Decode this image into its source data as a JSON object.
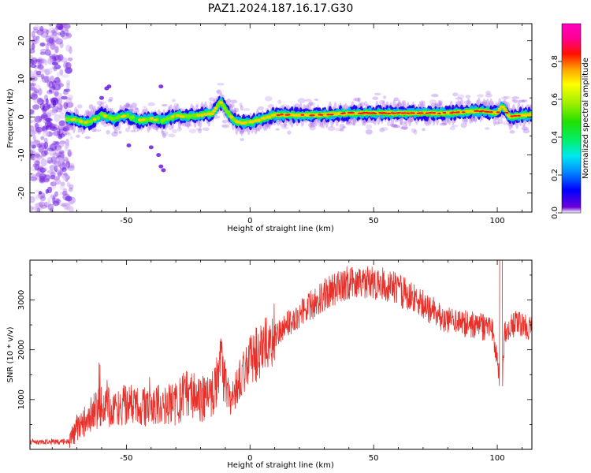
{
  "title": "PAZ1.2024.187.16.17.G30",
  "colors": {
    "snr_line": "#e8302a",
    "axis": "#000000"
  },
  "chart_data": [
    {
      "type": "heatmap",
      "panel": "top",
      "xlabel": "Height of straight line (km)",
      "ylabel": "Frequency (Hz)",
      "xlim": [
        -89,
        114
      ],
      "ylim": [
        -25,
        24.5
      ],
      "xticks": [
        -50,
        0,
        50,
        100
      ],
      "yticks": [
        -20,
        -10,
        0,
        10,
        20
      ],
      "grid": false,
      "colorbar": {
        "label": "Normalized spectral amplitude",
        "range": [
          0,
          1
        ],
        "ticks": [
          0.0,
          0.2,
          0.4,
          0.6,
          0.8
        ],
        "colormap": "gist_ncar-like (purple-blue-cyan-green-yellow-red-magenta)"
      },
      "ridge": {
        "description": "Main spectral ridge near 0 Hz",
        "x": [
          -73,
          -65,
          -60,
          -55,
          -50,
          -45,
          -40,
          -35,
          -30,
          -25,
          -20,
          -15,
          -12,
          -10,
          -7,
          -5,
          0,
          5,
          10,
          20,
          30,
          40,
          50,
          60,
          70,
          80,
          90,
          95,
          100,
          102,
          105,
          110,
          114
        ],
        "y": [
          -0.5,
          -1.5,
          0.5,
          -0.5,
          0.5,
          -1,
          -0.5,
          -1,
          0.5,
          0,
          0.5,
          1,
          4,
          2,
          -0.5,
          -1.5,
          -1.5,
          -0.5,
          0.5,
          0.5,
          0.5,
          1,
          1,
          1,
          1,
          1,
          1.5,
          1.5,
          1,
          3,
          0,
          0.5,
          0.5
        ]
      }
    },
    {
      "type": "line",
      "panel": "bottom",
      "xlabel": "Height of straight line (km)",
      "ylabel": "SNR (10 * v/v)",
      "xlim": [
        -89,
        114
      ],
      "ylim": [
        0,
        3800
      ],
      "xticks": [
        -50,
        0,
        50,
        100
      ],
      "yticks": [
        1000,
        2000,
        3000
      ],
      "grid": false,
      "series": [
        {
          "x": [
            -89,
            -80,
            -73,
            -70,
            -65,
            -60,
            -55,
            -50,
            -45,
            -40,
            -35,
            -30,
            -28,
            -25,
            -20,
            -15,
            -12,
            -10,
            -8,
            -5,
            0,
            5,
            10,
            20,
            30,
            40,
            50,
            55,
            60,
            70,
            80,
            90,
            95,
            98,
            100,
            101,
            102,
            103,
            105,
            110,
            114
          ],
          "y": [
            150,
            150,
            150,
            450,
            650,
            900,
            800,
            900,
            850,
            850,
            900,
            900,
            1000,
            1200,
            1000,
            1200,
            1600,
            1400,
            900,
            1300,
            1800,
            2000,
            2300,
            2700,
            3100,
            3350,
            3350,
            3300,
            3200,
            2900,
            2600,
            2500,
            2450,
            2400,
            1800,
            1400,
            1300,
            2300,
            2500,
            2500,
            2400
          ]
        }
      ]
    }
  ],
  "ui": {
    "top_xlabel": "Height of straight line (km)",
    "top_ylabel": "Frequency (Hz)",
    "bottom_xlabel": "Height of straight line (km)",
    "bottom_ylabel": "SNR (10 * v/v)",
    "colorbar_label": "Normalized spectral amplitude"
  }
}
